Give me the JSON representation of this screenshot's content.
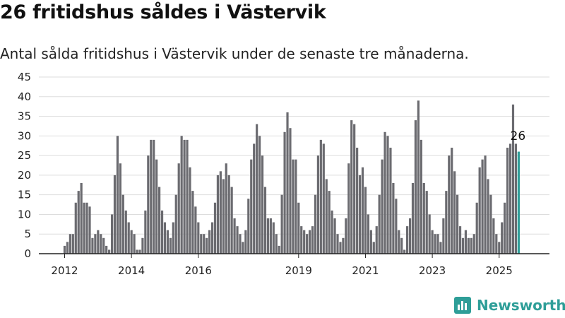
{
  "title": "26 fritidshus såldes i Västervik",
  "subtitle": "Antal sålda fritidshus i Västervik under de senaste tre månaderna.",
  "brand": {
    "name": "Newsworthy",
    "icon": "newsworthy-logo-icon"
  },
  "colors": {
    "bar": "#6b6b70",
    "highlight": "#2e9e98",
    "grid": "#dddddd",
    "axis": "#222222",
    "brand": "#2e9e98"
  },
  "chart_data": {
    "type": "bar",
    "title": "26 fritidshus såldes i Västervik",
    "subtitle": "Antal sålda fritidshus i Västervik under de senaste tre månaderna.",
    "xlabel": "",
    "ylabel": "",
    "ylim": [
      0,
      45
    ],
    "y_ticks": [
      0,
      5,
      10,
      15,
      20,
      25,
      30,
      35,
      40,
      45
    ],
    "x_ticks": [
      "2012",
      "2014",
      "2016",
      "2019",
      "2021",
      "2023",
      "2025"
    ],
    "grid": true,
    "annotation": "26",
    "values": [
      2,
      3,
      5,
      5,
      13,
      16,
      18,
      13,
      13,
      12,
      4,
      5,
      6,
      5,
      4,
      2,
      1,
      10,
      20,
      30,
      23,
      15,
      11,
      8,
      6,
      5,
      1,
      1,
      4,
      11,
      25,
      29,
      29,
      24,
      17,
      11,
      8,
      6,
      4,
      8,
      15,
      23,
      30,
      29,
      29,
      22,
      16,
      12,
      8,
      5,
      5,
      4,
      6,
      8,
      13,
      20,
      21,
      19,
      23,
      20,
      17,
      9,
      7,
      5,
      3,
      6,
      14,
      24,
      28,
      33,
      30,
      25,
      17,
      9,
      9,
      8,
      5,
      2,
      15,
      31,
      36,
      32,
      24,
      24,
      13,
      7,
      6,
      5,
      6,
      7,
      15,
      25,
      29,
      28,
      19,
      16,
      11,
      9,
      5,
      3,
      4,
      9,
      23,
      34,
      33,
      27,
      20,
      22,
      17,
      10,
      6,
      3,
      7,
      15,
      24,
      31,
      30,
      27,
      18,
      14,
      6,
      4,
      1,
      7,
      9,
      18,
      34,
      39,
      29,
      18,
      16,
      10,
      6,
      5,
      5,
      3,
      9,
      16,
      25,
      27,
      21,
      15,
      7,
      4,
      6,
      4,
      4,
      5,
      13,
      22,
      24,
      25,
      19,
      15,
      9,
      5,
      3,
      8,
      13,
      27,
      28,
      38,
      28,
      26
    ],
    "highlight_last": true
  }
}
